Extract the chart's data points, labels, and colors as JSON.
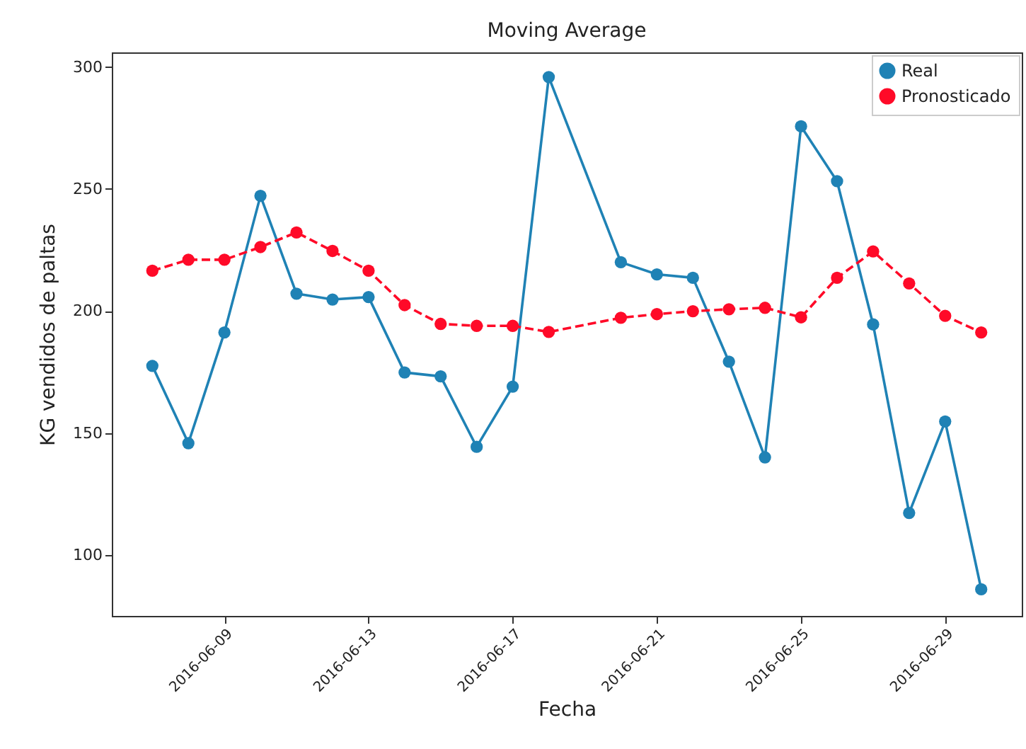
{
  "chart_data": {
    "type": "line",
    "title": "Moving Average",
    "xlabel": "Fecha",
    "ylabel": "KG vendidos de paltas",
    "x": [
      "2016-06-07",
      "2016-06-08",
      "2016-06-09",
      "2016-06-10",
      "2016-06-11",
      "2016-06-12",
      "2016-06-13",
      "2016-06-14",
      "2016-06-15",
      "2016-06-16",
      "2016-06-17",
      "2016-06-18",
      "2016-06-20",
      "2016-06-21",
      "2016-06-22",
      "2016-06-23",
      "2016-06-24",
      "2016-06-25",
      "2016-06-26",
      "2016-06-27",
      "2016-06-28",
      "2016-06-29",
      "2016-06-30"
    ],
    "series": [
      {
        "name": "Real",
        "color": "#1f82b5",
        "line_style": "solid",
        "values": [
          177.5,
          145.8,
          191.2,
          247.2,
          207.1,
          204.7,
          205.7,
          174.8,
          173.2,
          144.3,
          169,
          295.9,
          220,
          215,
          213.6,
          179.2,
          140,
          275.7,
          253.2,
          194.5,
          117.2,
          154.7,
          85.9
        ]
      },
      {
        "name": "Pronosticado",
        "color": "#ff0a28",
        "line_style": "dashed",
        "values": [
          216.5,
          221,
          221,
          226.2,
          232.2,
          224.6,
          216.5,
          202.4,
          194.7,
          193.9,
          193.9,
          191.4,
          197.2,
          198.7,
          199.9,
          200.7,
          201.3,
          197.4,
          213.6,
          224.4,
          211.3,
          198,
          191.2
        ]
      }
    ],
    "xlim": [
      "2016-06-05T21:00",
      "2016-07-01T03:00"
    ],
    "xticks": [
      "2016-06-09",
      "2016-06-13",
      "2016-06-17",
      "2016-06-21",
      "2016-06-25",
      "2016-06-29"
    ],
    "ylim": [
      75,
      306
    ],
    "yticks": [
      100,
      150,
      200,
      250,
      300
    ],
    "grid": false,
    "legend": "top right",
    "marker": "circle"
  }
}
